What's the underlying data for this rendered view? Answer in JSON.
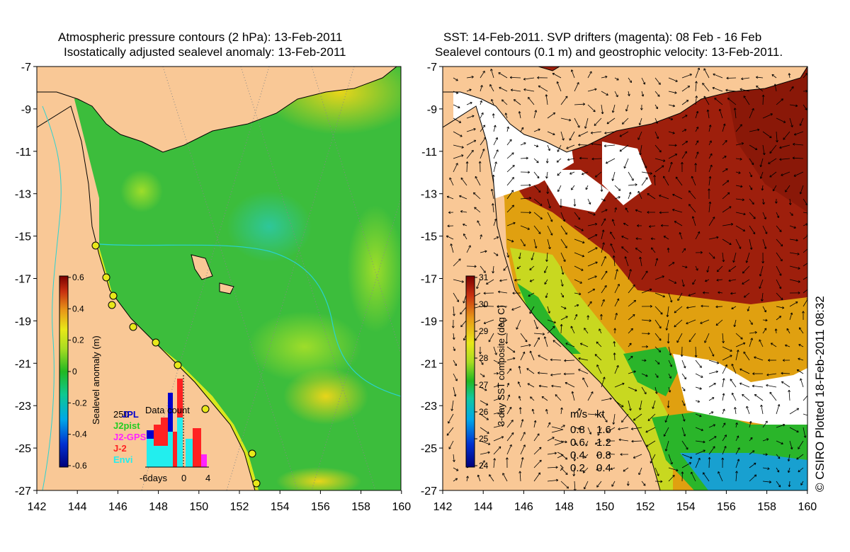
{
  "left_panel": {
    "title_line1": "Atmospheric pressure contours (2 hPa): 13-Feb-2011",
    "title_line2": "Isostatically adjusted sealevel anomaly: 13-Feb-2011",
    "y_ticks": [
      "-7",
      "-9",
      "-11",
      "-13",
      "-15",
      "-17",
      "-19",
      "-21",
      "-23",
      "-25",
      "-27"
    ],
    "x_ticks": [
      "142",
      "144",
      "146",
      "148",
      "150",
      "152",
      "154",
      "156",
      "158",
      "160"
    ],
    "colorbar": {
      "label": "Sealevel anomaly (m)",
      "ticks": [
        "0.6",
        "0.4",
        "0.2",
        "0",
        "-0.2",
        "-0.4",
        "-0.6"
      ]
    },
    "data_count": {
      "title": "Data count",
      "y_label": "250",
      "legend": [
        {
          "name": "JPL",
          "color": "#0000cc"
        },
        {
          "name": "J2pist",
          "color": "#22cc22"
        },
        {
          "name": "J2-GPS",
          "color": "#ff22ff"
        },
        {
          "name": "J-2",
          "color": "#ff2222"
        },
        {
          "name": "Envi",
          "color": "#22eeee"
        }
      ],
      "x_ticks": [
        "-6days",
        "0",
        "4"
      ]
    }
  },
  "right_panel": {
    "title_line1": "SST: 14-Feb-2011. SVP drifters (magenta): 08 Feb - 16 Feb",
    "title_line2": "Sealevel contours (0.1 m) and geostrophic velocity: 13-Feb-2011.",
    "y_ticks": [
      "-7",
      "-9",
      "-11",
      "-13",
      "-15",
      "-17",
      "-19",
      "-21",
      "-23",
      "-25",
      "-27"
    ],
    "x_ticks": [
      "142",
      "144",
      "146",
      "148",
      "150",
      "152",
      "154",
      "156",
      "158",
      "160"
    ],
    "colorbar": {
      "label": "3-day SST composite (deg C)",
      "ticks": [
        "31",
        "30",
        "29",
        "28",
        "27",
        "26",
        "25",
        "24"
      ]
    },
    "velocity_legend": {
      "header_ms": "m/s",
      "header_kt": "kt",
      "rows": [
        {
          "ms": "0.8",
          "kt": "1.6"
        },
        {
          "ms": "0.6",
          "kt": "1.2"
        },
        {
          "ms": "0.4",
          "kt": "0.8"
        },
        {
          "ms": "0.2",
          "kt": "0.4"
        }
      ]
    }
  },
  "credit": "© CSIRO Plotted 18-Feb-2011 08:32",
  "colors": {
    "land": "#f9c896",
    "sla_low": "#1fb23b",
    "sla_high": "#d8e81c",
    "sst_hot": "#9e1f0c",
    "sst_warm": "#e08a10",
    "sst_mid": "#2ab52a"
  }
}
